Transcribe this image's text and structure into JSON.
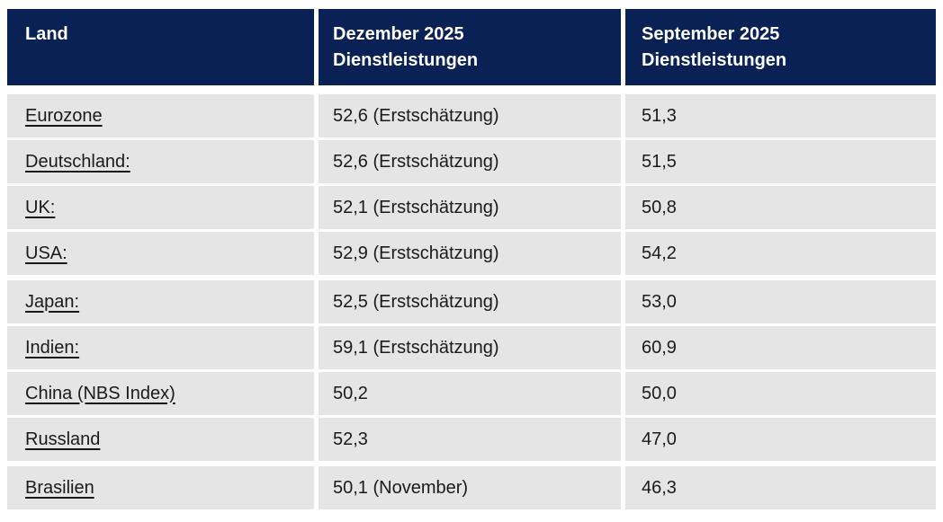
{
  "colors": {
    "header_bg": "#0a2155",
    "header_text": "#ffffff",
    "row_bg": "#e5e5e5",
    "row_text": "#1a1a1a",
    "page_bg": "#ffffff"
  },
  "table": {
    "header": {
      "land": "Land",
      "dezember": "Dezember 2025\nDienstleistungen",
      "september": "September 2025\nDienstleistungen"
    },
    "rows": [
      {
        "land": "Eurozone",
        "dezember": "52,6 (Erstschätzung)",
        "september": "51,3"
      },
      {
        "land": "Deutschland:",
        "dezember": "52,6 (Erstschätzung)",
        "september": "51,5"
      },
      {
        "land": "UK:",
        "dezember": "52,1 (Erstschätzung)",
        "september": "50,8"
      },
      {
        "land": "USA:",
        "dezember": "52,9 (Erstschätzung)",
        "september": "54,2"
      },
      {
        "land": "Japan:",
        "dezember": "52,5 (Erstschätzung)",
        "september": "53,0"
      },
      {
        "land": "Indien:",
        "dezember": "59,1 (Erstschätzung)",
        "september": "60,9"
      },
      {
        "land": "China (NBS Index)",
        "dezember": "50,2",
        "september": "50,0"
      },
      {
        "land": "Russland",
        "dezember": "52,3",
        "september": "47,0"
      },
      {
        "land": "Brasilien",
        "dezember": "50,1 (November)",
        "september": "46,3"
      }
    ]
  }
}
